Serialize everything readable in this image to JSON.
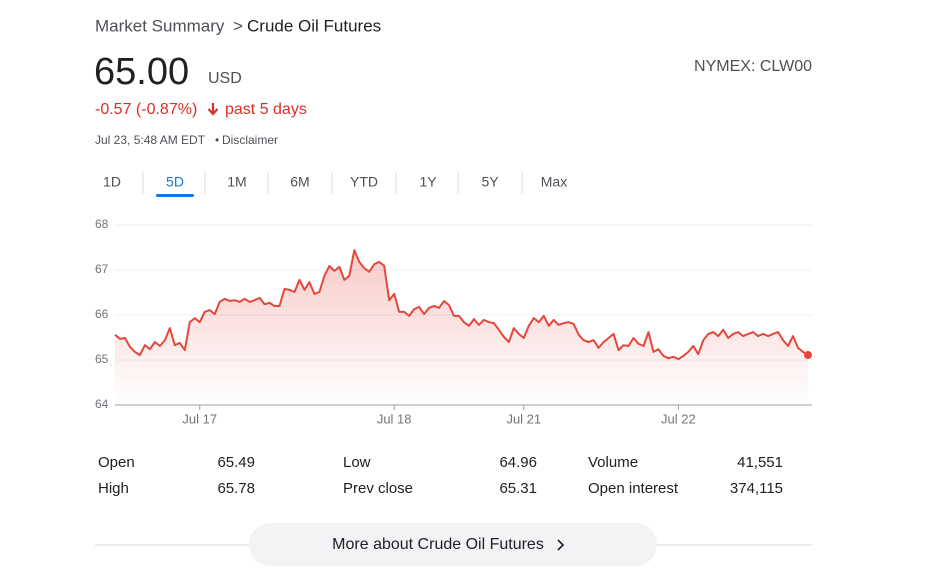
{
  "header": {
    "breadcrumb_root": "Market Summary",
    "breadcrumb_separator": ">",
    "breadcrumb_current": "Crude Oil Futures"
  },
  "quote": {
    "price": "65.00",
    "currency": "USD",
    "exchange": "NYMEX: CLW00",
    "change": "-0.57 (-0.87%)",
    "period": "past 5 days",
    "timestamp": "Jul 23, 5:48 AM EDT",
    "dot": "•",
    "disclaimer": "Disclaimer"
  },
  "tabs": {
    "items": [
      "1D",
      "5D",
      "1M",
      "6M",
      "YTD",
      "1Y",
      "5Y",
      "Max"
    ],
    "selected": 1
  },
  "chart_data": {
    "type": "line",
    "color": "#e5473c",
    "grid": true,
    "values": [
      65.56,
      65.47,
      65.49,
      65.29,
      65.18,
      65.11,
      65.33,
      65.24,
      65.4,
      65.31,
      65.44,
      65.71,
      65.33,
      65.38,
      65.22,
      65.84,
      65.93,
      65.84,
      66.07,
      66.11,
      66.02,
      66.29,
      66.36,
      66.31,
      66.33,
      66.29,
      66.36,
      66.29,
      66.33,
      66.38,
      66.24,
      66.27,
      66.2,
      66.2,
      66.58,
      66.56,
      66.51,
      66.78,
      66.56,
      66.73,
      66.47,
      66.51,
      66.87,
      67.09,
      66.98,
      67.07,
      66.78,
      66.87,
      67.44,
      67.18,
      67.04,
      66.96,
      67.13,
      67.18,
      67.09,
      66.33,
      66.47,
      66.07,
      66.07,
      65.98,
      66.13,
      66.18,
      66.02,
      66.16,
      66.2,
      66.16,
      66.31,
      66.22,
      65.98,
      65.98,
      65.84,
      65.76,
      65.91,
      65.78,
      65.89,
      65.84,
      65.82,
      65.67,
      65.51,
      65.4,
      65.71,
      65.58,
      65.49,
      65.76,
      65.93,
      65.84,
      65.98,
      65.76,
      65.89,
      65.78,
      65.82,
      65.84,
      65.8,
      65.56,
      65.44,
      65.4,
      65.44,
      65.27,
      65.4,
      65.49,
      65.58,
      65.22,
      65.33,
      65.31,
      65.49,
      65.36,
      65.31,
      65.62,
      65.18,
      65.24,
      65.09,
      65.04,
      65.07,
      65.02,
      65.09,
      65.18,
      65.31,
      65.13,
      65.44,
      65.58,
      65.62,
      65.53,
      65.67,
      65.49,
      65.58,
      65.62,
      65.53,
      65.58,
      65.62,
      65.53,
      65.58,
      65.53,
      65.58,
      65.62,
      65.44,
      65.31,
      65.53,
      65.27,
      65.18,
      65.11
    ],
    "xlim": [
      0,
      139
    ],
    "xticks": [
      {
        "value": 17,
        "label": "Jul 17"
      },
      {
        "value": 56,
        "label": "Jul 18"
      },
      {
        "value": 82,
        "label": "Jul 21"
      },
      {
        "value": 113,
        "label": "Jul 22"
      }
    ],
    "ylim": [
      64,
      68
    ],
    "yticks": [
      64,
      65,
      66,
      67,
      68
    ]
  },
  "stats": {
    "rows": [
      [
        "Open",
        "65.49",
        "Low",
        "64.96",
        "Volume",
        "41,551"
      ],
      [
        "High",
        "65.78",
        "Prev close",
        "65.31",
        "Open interest",
        "374,115"
      ]
    ]
  },
  "footer": {
    "button": "More about Crude Oil Futures"
  }
}
